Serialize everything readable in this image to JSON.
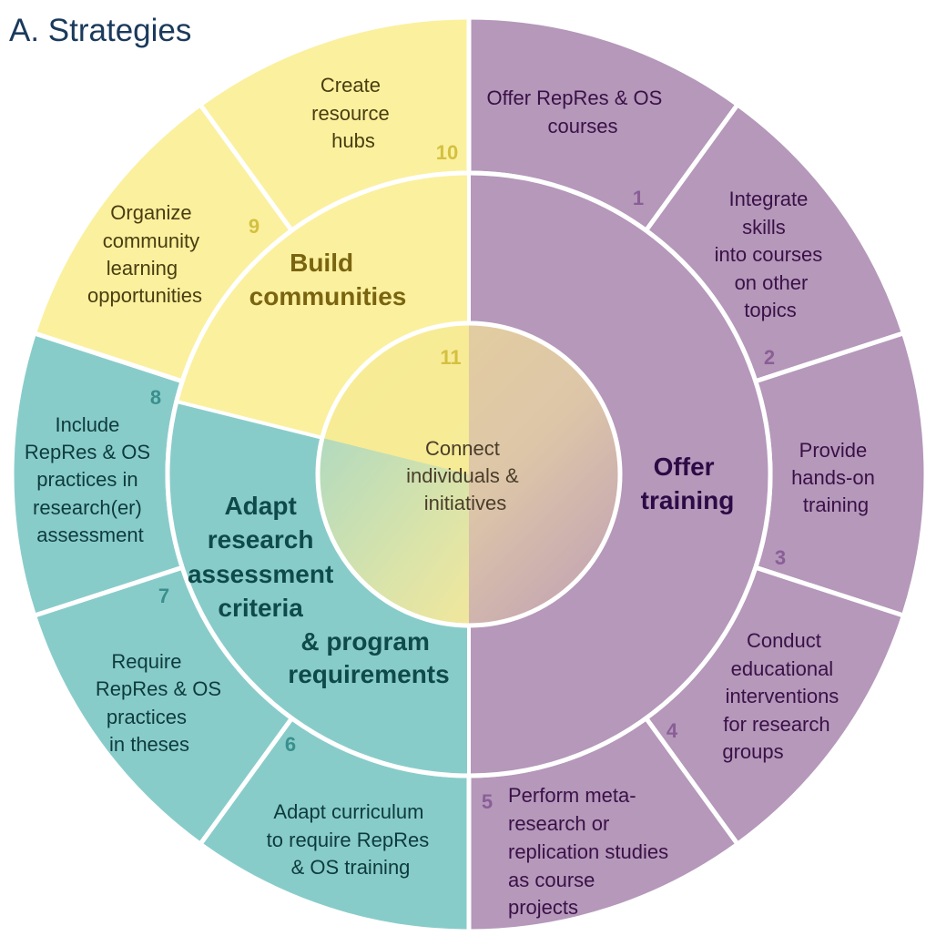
{
  "title": "A. Strategies",
  "colors": {
    "yellow": "#fbf09e",
    "purple": "#b598ba",
    "teal": "#88ccca",
    "divider": "#ffffff",
    "title": "#1b3a5c"
  },
  "categories": {
    "build_communities": [
      "Build",
      "communities"
    ],
    "offer_training": [
      "Offer",
      "training"
    ],
    "adapt_criteria": [
      "Adapt",
      "research",
      "assessment",
      "criteria",
      "& program",
      "requirements"
    ]
  },
  "center": {
    "number": "11",
    "lines": [
      "Connect",
      "individuals &",
      "initiatives"
    ]
  },
  "strategies": [
    {
      "number": "1",
      "lines": [
        "Offer RepRes & OS",
        "courses"
      ]
    },
    {
      "number": "2",
      "lines": [
        "Integrate",
        "skills",
        "into courses",
        "on other",
        "topics"
      ]
    },
    {
      "number": "3",
      "lines": [
        "Provide",
        "hands-on",
        "training"
      ]
    },
    {
      "number": "4",
      "lines": [
        "Conduct",
        "educational",
        "interventions",
        "for research",
        "groups"
      ]
    },
    {
      "number": "5",
      "lines": [
        "Perform meta-",
        "research or",
        "replication studies",
        "as course",
        "projects"
      ]
    },
    {
      "number": "6",
      "lines": [
        "Adapt curriculum",
        "to require RepRes",
        "& OS training"
      ]
    },
    {
      "number": "7",
      "lines": [
        "Require",
        "RepRes & OS",
        "practices",
        "in theses"
      ]
    },
    {
      "number": "8",
      "lines": [
        "Include",
        "RepRes & OS",
        "practices in",
        "research(er)",
        "assessment"
      ]
    },
    {
      "number": "9",
      "lines": [
        "Organize",
        "community",
        "learning",
        "opportunities"
      ]
    },
    {
      "number": "10",
      "lines": [
        "Create",
        "resource",
        "hubs"
      ]
    }
  ]
}
